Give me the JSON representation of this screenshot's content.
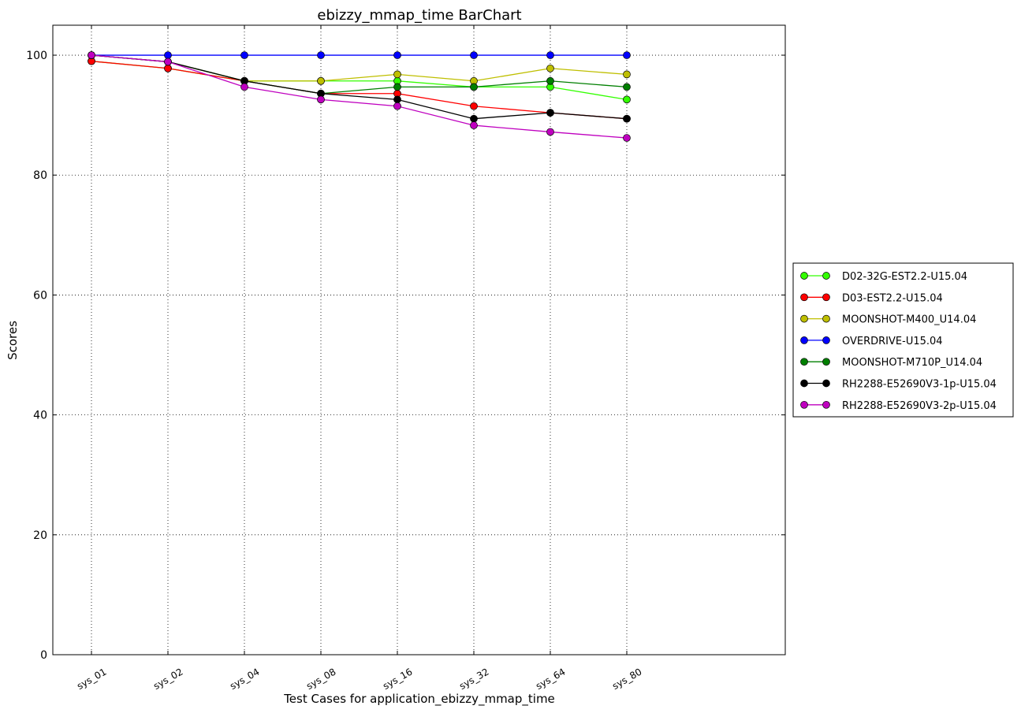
{
  "chart_data": {
    "type": "line",
    "title": "ebizzy_mmap_time BarChart",
    "xlabel": "Test Cases for application_ebizzy_mmap_time",
    "ylabel": "Scores",
    "categories": [
      "sys_01",
      "sys_02",
      "sys_04",
      "sys_08",
      "sys_16",
      "sys_32",
      "sys_64",
      "sys_80"
    ],
    "ylim": [
      0,
      105
    ],
    "yticks": [
      0,
      20,
      40,
      60,
      80,
      100
    ],
    "grid": true,
    "legend_position": "right",
    "series": [
      {
        "name": "D02-32G-EST2.2-U15.04",
        "color": "#33ff00",
        "values": [
          99.0,
          97.8,
          95.7,
          95.7,
          95.7,
          94.7,
          94.7,
          92.6
        ]
      },
      {
        "name": "D03-EST2.2-U15.04",
        "color": "#ff0000",
        "values": [
          99.0,
          97.8,
          95.7,
          93.6,
          93.6,
          91.5,
          90.4,
          89.4
        ]
      },
      {
        "name": "MOONSHOT-M400_U14.04",
        "color": "#bfbf00",
        "values": [
          100.0,
          98.9,
          95.7,
          95.7,
          96.8,
          95.7,
          97.8,
          96.8
        ]
      },
      {
        "name": "OVERDRIVE-U15.04",
        "color": "#0000ff",
        "values": [
          100.0,
          100.0,
          100.0,
          100.0,
          100.0,
          100.0,
          100.0,
          100.0
        ]
      },
      {
        "name": "MOONSHOT-M710P_U14.04",
        "color": "#007f00",
        "values": [
          100.0,
          98.9,
          95.7,
          93.6,
          94.7,
          94.7,
          95.7,
          94.7
        ]
      },
      {
        "name": "RH2288-E52690V3-1p-U15.04",
        "color": "#000000",
        "values": [
          100.0,
          98.9,
          95.7,
          93.6,
          92.6,
          89.4,
          90.4,
          89.4
        ]
      },
      {
        "name": "RH2288-E52690V3-2p-U15.04",
        "color": "#bf00bf",
        "values": [
          100.0,
          98.9,
          94.7,
          92.6,
          91.5,
          88.3,
          87.2,
          86.2
        ]
      }
    ]
  }
}
